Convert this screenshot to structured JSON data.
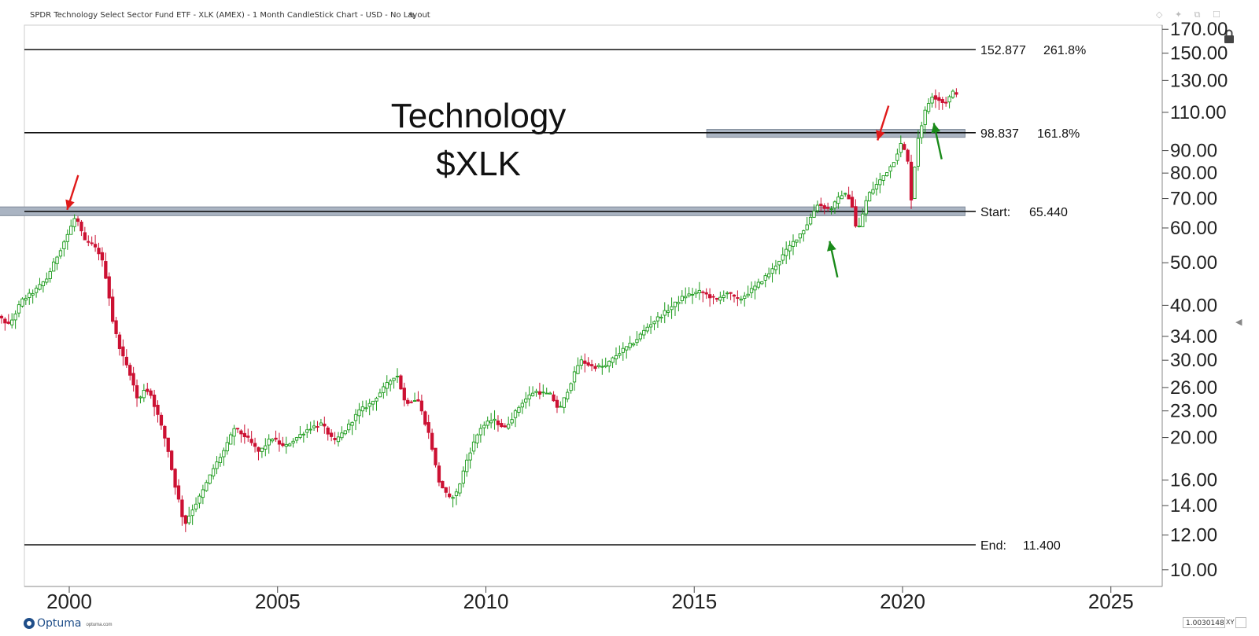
{
  "header": {
    "title": "SPDR Technology Select Sector Fund ETF - XLK (AMEX) - 1 Month CandleStick Chart - USD - No Layout",
    "toolbar_icons": [
      "diamond-icon",
      "pin-icon",
      "restore-icon",
      "close-icon"
    ],
    "toolbar_glyphs": "◇ ✦ ⧉ ☐"
  },
  "footer": {
    "brand": "Optuma",
    "url": "optuma.com",
    "coord_readout": "1.0030148",
    "coord_suffix": "XY"
  },
  "colors": {
    "up": "#1a9a1a",
    "down": "#cc1133",
    "zone": "#aab4c2",
    "arrow_red": "#e01a1a",
    "arrow_green": "#1a8a1a"
  },
  "chart_data": {
    "type": "candlestick",
    "title": "Technology",
    "subtitle": "$XLK",
    "y_scale": "log",
    "x_ticks": [
      "2000",
      "2005",
      "2010",
      "2015",
      "2020",
      "2025"
    ],
    "y_ticks": [
      "10.00",
      "12.00",
      "14.00",
      "16.00",
      "20.00",
      "23.00",
      "26.00",
      "30.00",
      "34.00",
      "40.00",
      "50.00",
      "60.00",
      "70.00",
      "80.00",
      "90.00",
      "110.00",
      "130.00",
      "150.00",
      "170.00"
    ],
    "levels": [
      {
        "role": "ext-2618",
        "price": 152.877,
        "value_label": "152.877",
        "label": "261.8%"
      },
      {
        "role": "ext-1618",
        "price": 98.837,
        "value_label": "98.837",
        "label": "161.8%"
      },
      {
        "role": "start",
        "price": 65.44,
        "value_label": "65.440",
        "label": "Start:"
      },
      {
        "role": "end",
        "price": 11.4,
        "value_label": "11.400",
        "label": "End:"
      }
    ],
    "zones": [
      {
        "from_year": 1998.1,
        "to_year": 2021.5,
        "low": 64.0,
        "high": 67.0
      },
      {
        "from_year": 2015.3,
        "to_year": 2021.5,
        "low": 96.5,
        "high": 100.6
      }
    ],
    "arrows": [
      {
        "color": "red",
        "date": 1999.95,
        "price": 66,
        "direction": "down"
      },
      {
        "color": "red",
        "date": 2019.4,
        "price": 95,
        "direction": "down"
      },
      {
        "color": "green",
        "date": 2018.25,
        "price": 56,
        "direction": "up"
      },
      {
        "color": "green",
        "date": 2020.75,
        "price": 104,
        "direction": "up"
      }
    ],
    "anchor_points": [
      [
        1998.0,
        37
      ],
      [
        1998.3,
        38
      ],
      [
        1998.6,
        36
      ],
      [
        1998.9,
        41
      ],
      [
        1999.2,
        43
      ],
      [
        1999.5,
        46
      ],
      [
        1999.8,
        53
      ],
      [
        2000.0,
        58
      ],
      [
        2000.2,
        64
      ],
      [
        2000.4,
        56
      ],
      [
        2000.6,
        55
      ],
      [
        2000.8,
        52
      ],
      [
        2000.95,
        45
      ],
      [
        2001.1,
        36
      ],
      [
        2001.3,
        31
      ],
      [
        2001.5,
        28
      ],
      [
        2001.7,
        24
      ],
      [
        2001.85,
        26
      ],
      [
        2002.0,
        25
      ],
      [
        2002.2,
        22
      ],
      [
        2002.4,
        19
      ],
      [
        2002.55,
        16
      ],
      [
        2002.7,
        14
      ],
      [
        2002.8,
        12.6
      ],
      [
        2002.95,
        13.5
      ],
      [
        2003.2,
        14.8
      ],
      [
        2003.5,
        17
      ],
      [
        2003.8,
        19
      ],
      [
        2004.0,
        21
      ],
      [
        2004.3,
        20
      ],
      [
        2004.6,
        18.5
      ],
      [
        2004.9,
        20
      ],
      [
        2005.2,
        19
      ],
      [
        2005.5,
        20
      ],
      [
        2005.8,
        21
      ],
      [
        2006.1,
        21.5
      ],
      [
        2006.4,
        19.5
      ],
      [
        2006.7,
        21
      ],
      [
        2007.0,
        23
      ],
      [
        2007.3,
        24
      ],
      [
        2007.6,
        26
      ],
      [
        2007.9,
        28
      ],
      [
        2008.1,
        24
      ],
      [
        2008.4,
        24.5
      ],
      [
        2008.7,
        20
      ],
      [
        2008.9,
        16
      ],
      [
        2009.15,
        14.5
      ],
      [
        2009.35,
        15
      ],
      [
        2009.6,
        18
      ],
      [
        2009.9,
        21
      ],
      [
        2010.2,
        22
      ],
      [
        2010.5,
        21
      ],
      [
        2010.9,
        24
      ],
      [
        2011.2,
        25.5
      ],
      [
        2011.6,
        25
      ],
      [
        2011.8,
        23
      ],
      [
        2012.1,
        27
      ],
      [
        2012.3,
        30
      ],
      [
        2012.6,
        29
      ],
      [
        2012.9,
        29
      ],
      [
        2013.2,
        31
      ],
      [
        2013.6,
        33
      ],
      [
        2013.95,
        36
      ],
      [
        2014.4,
        39
      ],
      [
        2014.8,
        42
      ],
      [
        2015.2,
        43
      ],
      [
        2015.6,
        41
      ],
      [
        2015.8,
        43
      ],
      [
        2016.1,
        41
      ],
      [
        2016.5,
        44
      ],
      [
        2016.9,
        48
      ],
      [
        2017.3,
        54
      ],
      [
        2017.7,
        60
      ],
      [
        2018.0,
        68
      ],
      [
        2018.3,
        66
      ],
      [
        2018.6,
        72
      ],
      [
        2018.8,
        70
      ],
      [
        2018.95,
        58
      ],
      [
        2019.2,
        71
      ],
      [
        2019.5,
        77
      ],
      [
        2019.8,
        84
      ],
      [
        2020.0,
        93
      ],
      [
        2020.15,
        88
      ],
      [
        2020.25,
        70
      ],
      [
        2020.4,
        95
      ],
      [
        2020.6,
        112
      ],
      [
        2020.75,
        120
      ],
      [
        2020.9,
        118
      ],
      [
        2021.05,
        115
      ],
      [
        2021.25,
        122
      ]
    ]
  }
}
